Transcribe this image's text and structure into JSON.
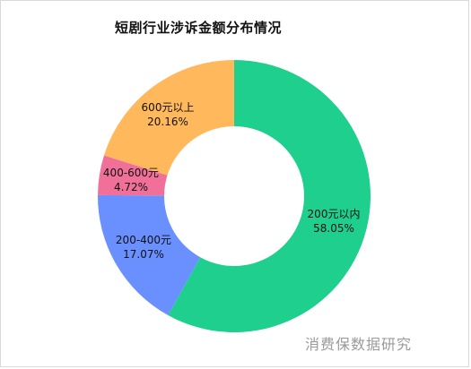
{
  "chart_data": {
    "type": "pie",
    "variant": "donut",
    "title": "短剧行业涉诉金额分布情况",
    "slices": [
      {
        "label": "200元以内",
        "value": 58.05,
        "value_label": "58.05%",
        "color": "#1fcf8e"
      },
      {
        "label": "200-400元",
        "value": 17.07,
        "value_label": "17.07%",
        "color": "#6a8fff"
      },
      {
        "label": "400-600元",
        "value": 4.72,
        "value_label": "4.72%",
        "color": "#f0709a"
      },
      {
        "label": "600元以上",
        "value": 20.16,
        "value_label": "20.16%",
        "color": "#ffb95c"
      }
    ],
    "legend": "none"
  },
  "watermark": "消费保数据研究"
}
